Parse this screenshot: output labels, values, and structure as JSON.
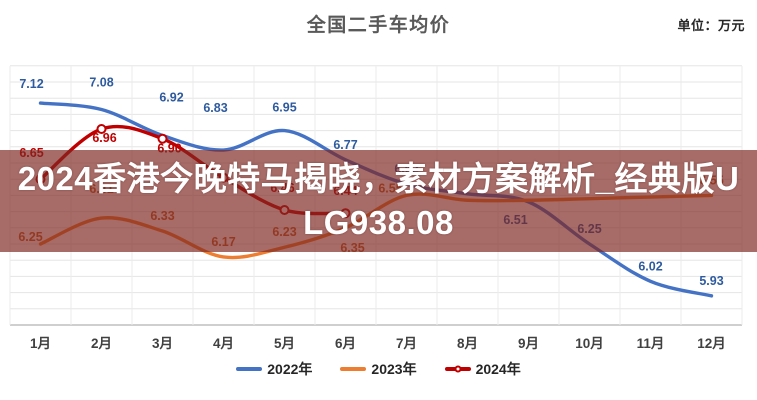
{
  "header": {
    "title": "全国二手车均价",
    "unit_label": "单位：万元"
  },
  "overlay": {
    "line1": "2024香港今晚特马揭晓，素材方案解析_经典版U",
    "line2": "LG938.08",
    "background_color": "#7D2721",
    "text_color": "#FFFFFF"
  },
  "chart_data": {
    "type": "line",
    "title": "全国二手车均价",
    "unit": "万元",
    "categories": [
      "1月",
      "2月",
      "3月",
      "4月",
      "5月",
      "6月",
      "7月",
      "8月",
      "9月",
      "10月",
      "11月",
      "12月"
    ],
    "series": [
      {
        "name": "2022年",
        "color": "#4472C4",
        "label_color": "#2E5B9F",
        "marker": false,
        "values": [
          7.12,
          7.08,
          6.92,
          6.83,
          6.95,
          6.77,
          6.62,
          6.56,
          6.51,
          6.25,
          6.02,
          5.93
        ],
        "labels": [
          "7.12",
          "7.08",
          "6.92",
          "6.83",
          "6.95",
          "6.77",
          "6.62",
          null,
          "6.51",
          "6.25",
          "6.02",
          "5.93"
        ]
      },
      {
        "name": "2023年",
        "color": "#ED7D31",
        "label_color": "#C0622A",
        "marker": false,
        "values": [
          6.25,
          6.41,
          6.33,
          6.17,
          6.23,
          6.35,
          6.55,
          6.52,
          6.52,
          6.53,
          6.54,
          6.55
        ],
        "labels": [
          "6.25",
          "6.41",
          "6.33",
          "6.17",
          "6.23",
          "6.35",
          "6.55",
          null,
          null,
          null,
          null,
          "6.55"
        ]
      },
      {
        "name": "2024年",
        "color": "#C00000",
        "label_color": "#C00000",
        "marker": true,
        "values": [
          6.65,
          6.96,
          6.9,
          6.66,
          6.46,
          6.44
        ],
        "labels": [
          "6.65",
          "6.96",
          "6.90",
          null,
          "6.46",
          "6.44"
        ]
      }
    ],
    "ylim": [
      5.75,
      7.35
    ],
    "grid": true,
    "y_major_step": 0.1,
    "legend_position": "bottom",
    "y_axis_labels_visible": false
  }
}
